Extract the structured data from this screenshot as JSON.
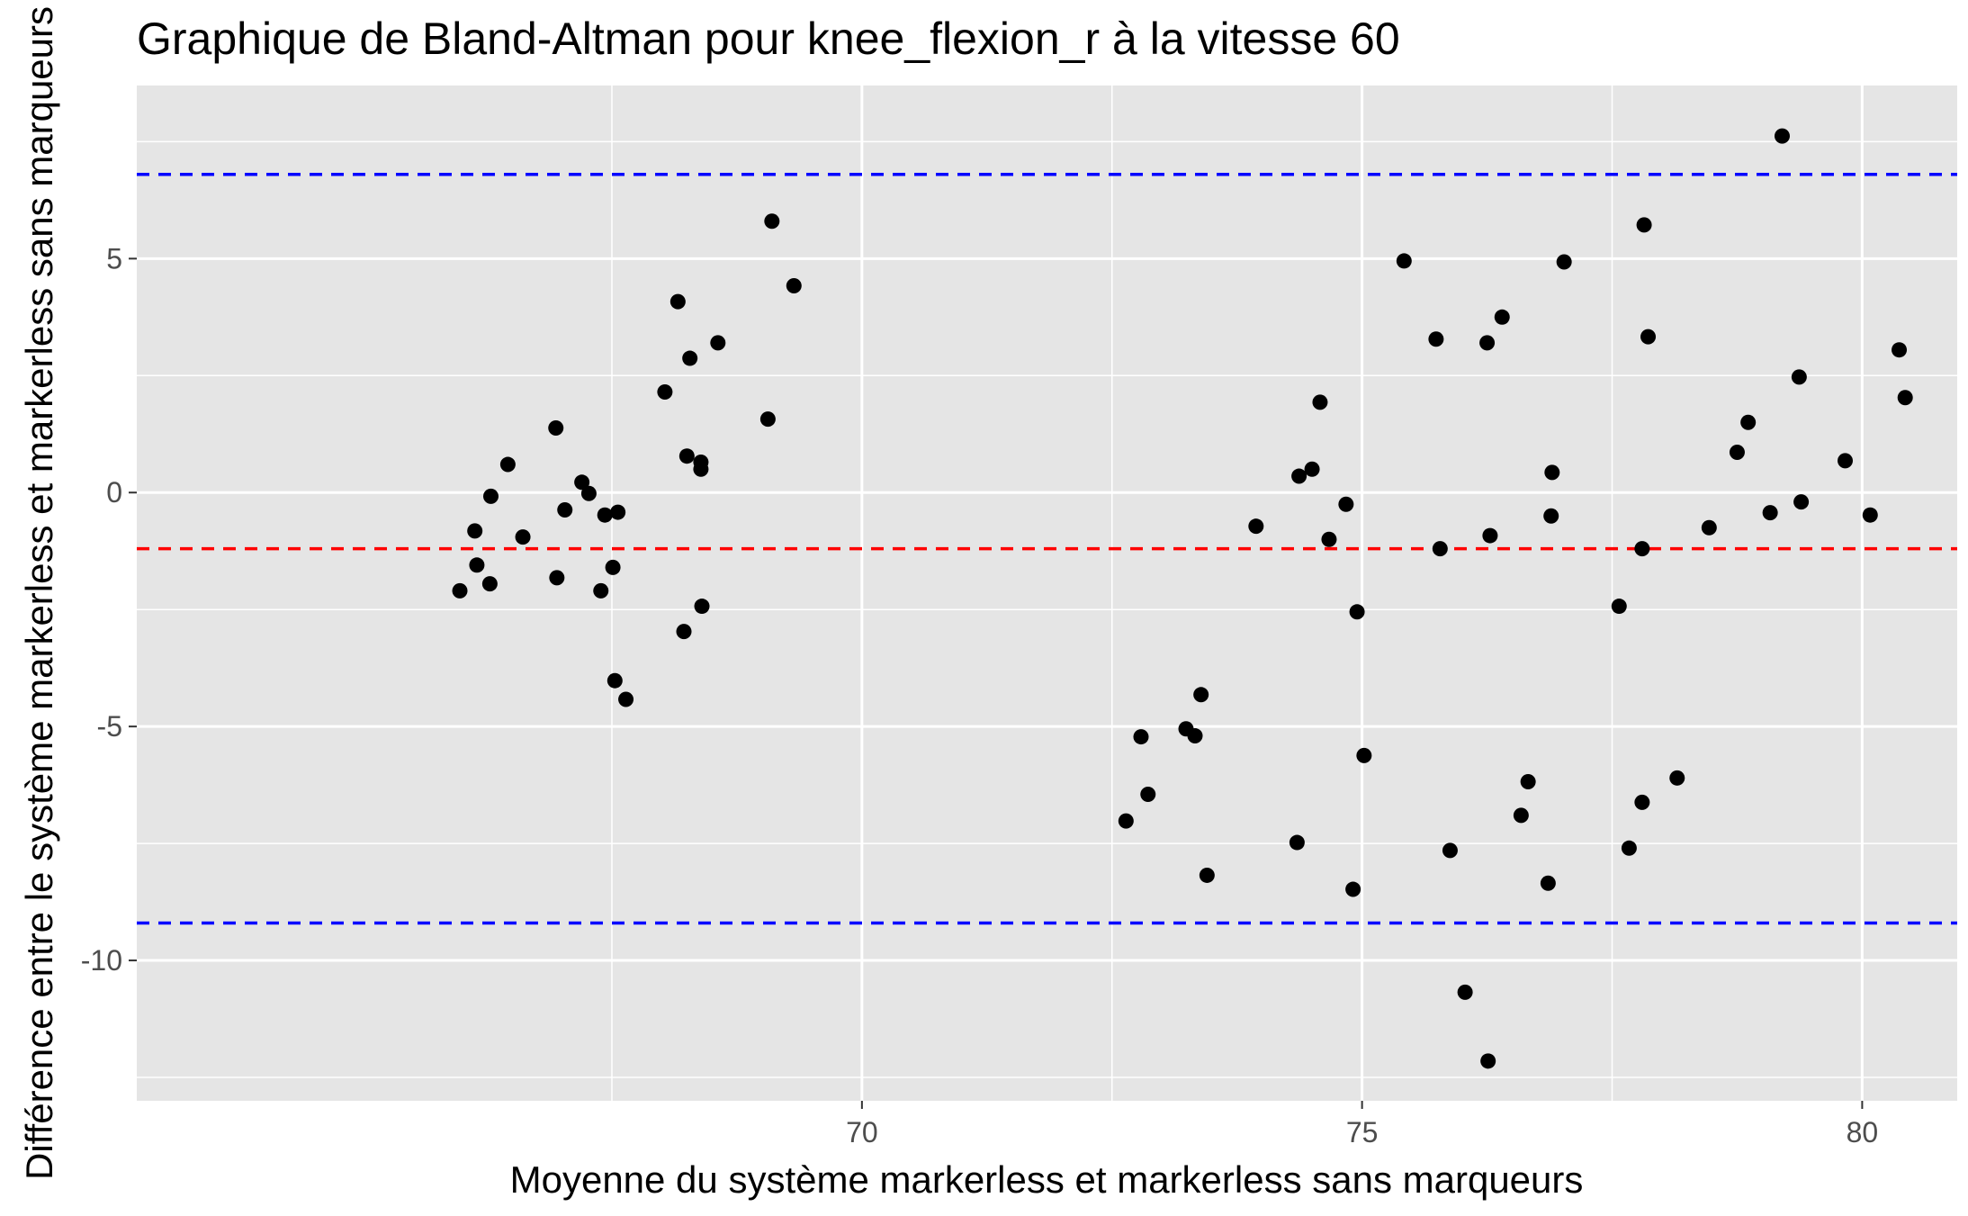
{
  "chart_data": {
    "type": "scatter",
    "title": "Graphique de Bland-Altman pour knee_flexion_r à la vitesse 60",
    "xlabel": "Moyenne du système markerless et markerless sans marqueurs",
    "ylabel": "Différence entre le système markerless et markerless sans marqueurs",
    "xlim": [
      62.75,
      80.95
    ],
    "ylim": [
      -13.0,
      8.7
    ],
    "x_ticks": [
      70,
      75,
      80
    ],
    "y_ticks": [
      -10,
      -5,
      0,
      5
    ],
    "x_tick_labels": [
      "70",
      "75",
      "80"
    ],
    "y_tick_labels": [
      "-10",
      "-5",
      "0",
      "5"
    ],
    "grid": true,
    "mean_difference": -1.2,
    "upper_limit": 6.8,
    "lower_limit": -9.2,
    "colors": {
      "panel_background": "#e5e5e5",
      "grid_line": "#ffffff",
      "point": "#000000",
      "mean_line": "#ff0000",
      "limit_line": "#0000ff"
    },
    "points": [
      {
        "x": 65.98,
        "y": -2.1
      },
      {
        "x": 66.13,
        "y": -0.82
      },
      {
        "x": 66.15,
        "y": -1.55
      },
      {
        "x": 66.28,
        "y": -1.95
      },
      {
        "x": 66.29,
        "y": -0.08
      },
      {
        "x": 66.46,
        "y": 0.6
      },
      {
        "x": 66.61,
        "y": -0.95
      },
      {
        "x": 66.94,
        "y": 1.38
      },
      {
        "x": 66.95,
        "y": -1.82
      },
      {
        "x": 67.03,
        "y": -0.37
      },
      {
        "x": 67.2,
        "y": 0.22
      },
      {
        "x": 67.27,
        "y": -0.02
      },
      {
        "x": 67.39,
        "y": -2.1
      },
      {
        "x": 67.43,
        "y": -0.48
      },
      {
        "x": 67.51,
        "y": -1.6
      },
      {
        "x": 67.53,
        "y": -4.02
      },
      {
        "x": 67.56,
        "y": -0.42
      },
      {
        "x": 67.64,
        "y": -4.42
      },
      {
        "x": 68.03,
        "y": 2.15
      },
      {
        "x": 68.16,
        "y": 4.08
      },
      {
        "x": 68.22,
        "y": -2.97
      },
      {
        "x": 68.25,
        "y": 0.78
      },
      {
        "x": 68.28,
        "y": 2.87
      },
      {
        "x": 68.39,
        "y": 0.65
      },
      {
        "x": 68.39,
        "y": 0.5
      },
      {
        "x": 68.4,
        "y": -2.43
      },
      {
        "x": 68.56,
        "y": 3.2
      },
      {
        "x": 69.06,
        "y": 1.57
      },
      {
        "x": 69.1,
        "y": 5.8
      },
      {
        "x": 69.32,
        "y": 4.42
      },
      {
        "x": 72.64,
        "y": -7.02
      },
      {
        "x": 72.79,
        "y": -5.22
      },
      {
        "x": 72.86,
        "y": -6.45
      },
      {
        "x": 73.24,
        "y": -5.05
      },
      {
        "x": 73.33,
        "y": -5.2
      },
      {
        "x": 73.39,
        "y": -4.32
      },
      {
        "x": 73.45,
        "y": -8.18
      },
      {
        "x": 73.94,
        "y": -0.72
      },
      {
        "x": 74.35,
        "y": -7.48
      },
      {
        "x": 74.37,
        "y": 0.35
      },
      {
        "x": 74.5,
        "y": 0.5
      },
      {
        "x": 74.58,
        "y": 1.93
      },
      {
        "x": 74.67,
        "y": -1.0
      },
      {
        "x": 74.84,
        "y": -0.25
      },
      {
        "x": 74.91,
        "y": -8.48
      },
      {
        "x": 74.95,
        "y": -2.55
      },
      {
        "x": 75.02,
        "y": -5.62
      },
      {
        "x": 75.42,
        "y": 4.95
      },
      {
        "x": 75.74,
        "y": 3.28
      },
      {
        "x": 75.78,
        "y": -1.2
      },
      {
        "x": 75.88,
        "y": -7.65
      },
      {
        "x": 76.03,
        "y": -10.68
      },
      {
        "x": 76.25,
        "y": 3.2
      },
      {
        "x": 76.26,
        "y": -12.15
      },
      {
        "x": 76.28,
        "y": -0.92
      },
      {
        "x": 76.4,
        "y": 3.75
      },
      {
        "x": 76.59,
        "y": -6.9
      },
      {
        "x": 76.66,
        "y": -6.18
      },
      {
        "x": 76.86,
        "y": -8.35
      },
      {
        "x": 76.89,
        "y": -0.5
      },
      {
        "x": 76.9,
        "y": 0.43
      },
      {
        "x": 77.02,
        "y": 4.93
      },
      {
        "x": 77.57,
        "y": -2.43
      },
      {
        "x": 77.67,
        "y": -7.6
      },
      {
        "x": 77.8,
        "y": -6.62
      },
      {
        "x": 77.8,
        "y": -1.2
      },
      {
        "x": 77.82,
        "y": 5.72
      },
      {
        "x": 77.86,
        "y": 3.33
      },
      {
        "x": 78.15,
        "y": -6.1
      },
      {
        "x": 78.47,
        "y": -0.75
      },
      {
        "x": 78.75,
        "y": 0.86
      },
      {
        "x": 78.86,
        "y": 1.5
      },
      {
        "x": 79.08,
        "y": -0.43
      },
      {
        "x": 79.2,
        "y": 7.62
      },
      {
        "x": 79.37,
        "y": 2.47
      },
      {
        "x": 79.39,
        "y": -0.2
      },
      {
        "x": 79.83,
        "y": 0.68
      },
      {
        "x": 80.08,
        "y": -0.48
      },
      {
        "x": 80.37,
        "y": 3.05
      },
      {
        "x": 80.43,
        "y": 2.03
      }
    ]
  }
}
